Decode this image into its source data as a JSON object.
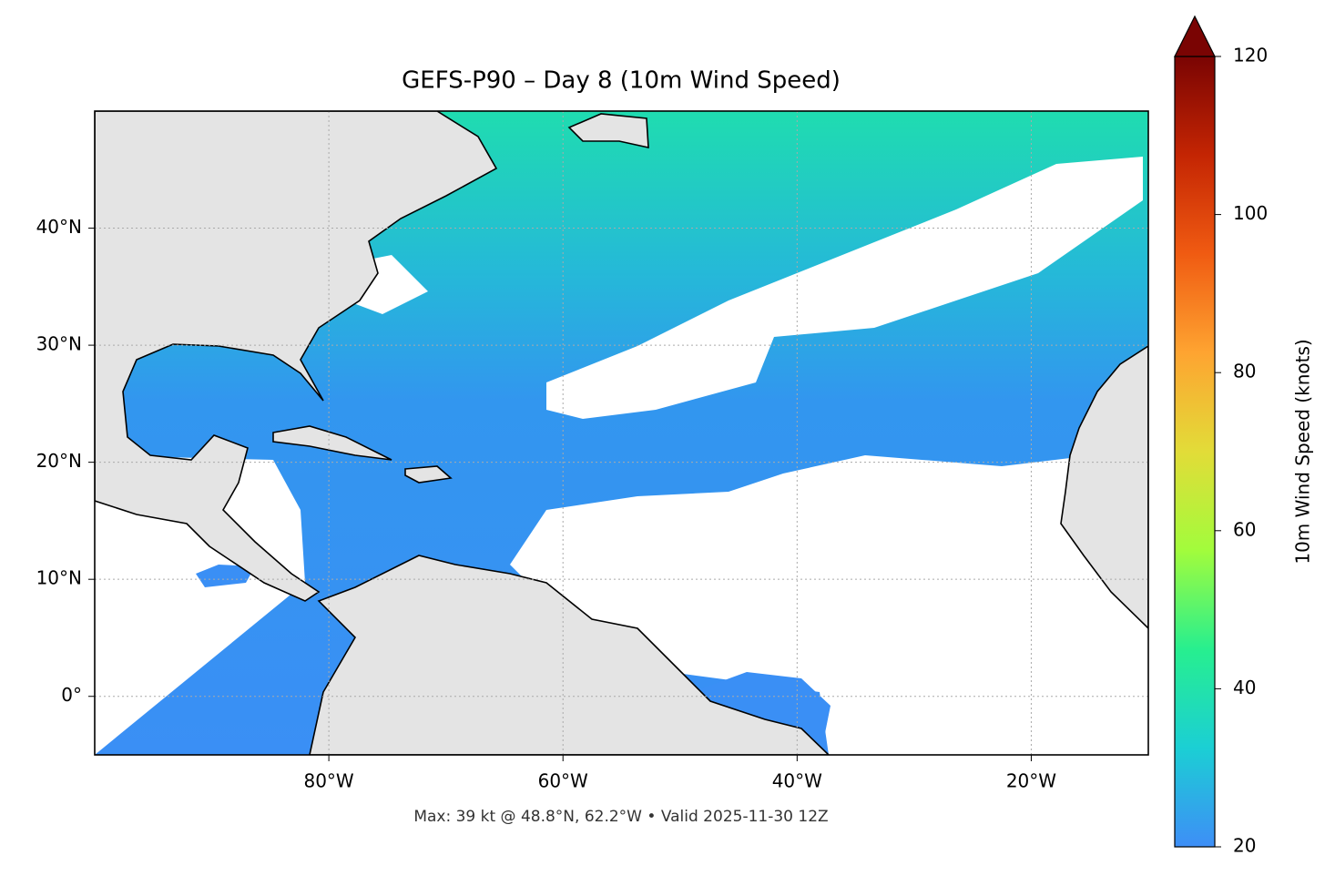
{
  "chart_data": {
    "type": "map",
    "title": "GEFS-P90 – Day 8 (10m Wind Speed)",
    "footnote": "Max: 39 kt @ 48.8°N, 62.2°W • Valid 2025-11-30 12Z",
    "xlim": [
      -100,
      -10
    ],
    "ylim": [
      -5,
      50
    ],
    "xticks": [
      {
        "value": -80,
        "label": "80°W"
      },
      {
        "value": -60,
        "label": "60°W"
      },
      {
        "value": -40,
        "label": "40°W"
      },
      {
        "value": -20,
        "label": "20°W"
      }
    ],
    "yticks": [
      {
        "value": 0,
        "label": "0°"
      },
      {
        "value": 10,
        "label": "10°N"
      },
      {
        "value": 20,
        "label": "20°N"
      },
      {
        "value": 30,
        "label": "30°N"
      },
      {
        "value": 40,
        "label": "40°N"
      }
    ],
    "grid": true,
    "colorbar": {
      "label": "10m Wind Speed (knots)",
      "lim": [
        20,
        120
      ],
      "ticks": [
        20,
        40,
        60,
        80,
        100,
        120
      ],
      "extend": "max",
      "colors": [
        "#3e8ef7",
        "#1bcfd4",
        "#27ef8f",
        "#a2fc3c",
        "#e2dc38",
        "#fea431",
        "#f05b12",
        "#c42503",
        "#7a0403"
      ]
    }
  }
}
